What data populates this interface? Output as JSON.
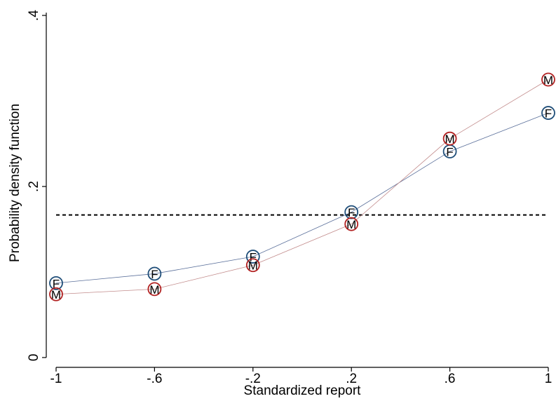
{
  "chart_data": {
    "type": "line",
    "xlabel": "Standardized report",
    "ylabel": "Probability density function",
    "x": [
      -1,
      -0.6,
      -0.2,
      0.2,
      0.6,
      1
    ],
    "x_tick_labels": [
      "-1",
      "-.6",
      "-.2",
      ".2",
      ".6",
      "1"
    ],
    "xlim": [
      -1,
      1
    ],
    "ylim": [
      0,
      0.4
    ],
    "y_ticks": [
      0,
      0.2,
      0.4
    ],
    "y_tick_labels": [
      "0",
      ".2",
      ".4"
    ],
    "grid": false,
    "reference_line": {
      "y": 0.1667,
      "style": "dashed"
    },
    "series": [
      {
        "marker": "F",
        "color": "#5a6f9a",
        "marker_color": "#1f4e79",
        "values": [
          0.087,
          0.098,
          0.118,
          0.17,
          0.241,
          0.286
        ]
      },
      {
        "marker": "M",
        "color": "#c28b8b",
        "marker_color": "#b22222",
        "values": [
          0.074,
          0.08,
          0.108,
          0.156,
          0.256,
          0.325
        ]
      }
    ]
  }
}
